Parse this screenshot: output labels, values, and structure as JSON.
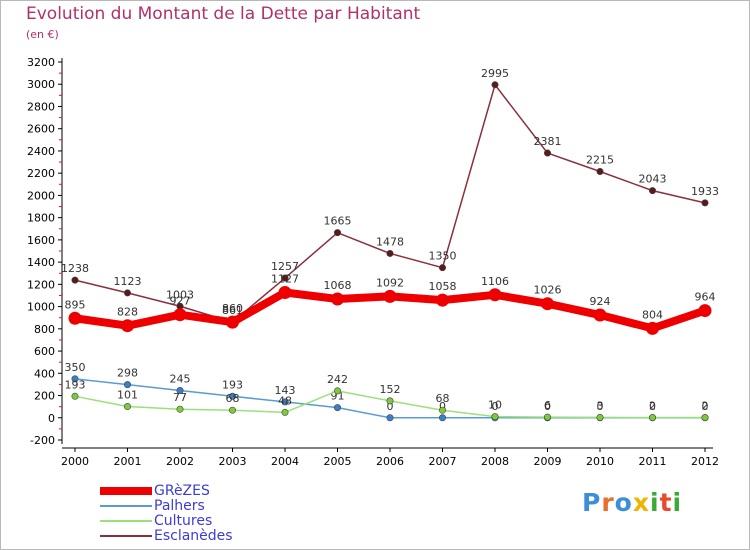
{
  "title": "Evolution du Montant de la Dette par Habitant",
  "subtitle": "(en €)",
  "logo": {
    "text": "Proxiti",
    "colors": [
      "#3a8fd6",
      "#e8702a",
      "#3a8fd6",
      "#f0b400",
      "#3aaa35",
      "#e84a2a",
      "#3aaa35"
    ]
  },
  "chart_data": {
    "type": "line",
    "x": [
      "2000",
      "2001",
      "2002",
      "2003",
      "2004",
      "2005",
      "2006",
      "2007",
      "2008",
      "2009",
      "2010",
      "2011",
      "2012"
    ],
    "ylim": [
      -200,
      3200
    ],
    "yticks": [
      "-200",
      "0",
      "200",
      "400",
      "600",
      "800",
      "1000",
      "1200",
      "1400",
      "1600",
      "1800",
      "2000",
      "2200",
      "2400",
      "2600",
      "2800",
      "3000",
      "3200"
    ],
    "grid": false,
    "legend_position": "bottom-left",
    "series": [
      {
        "name": "Esclanèdes",
        "color": "#8b2f3a",
        "marker": "#5a1a1a",
        "values": [
          1238,
          1123,
          1003,
          861,
          1257,
          1665,
          1478,
          1350,
          2995,
          2381,
          2215,
          2043,
          1933
        ],
        "labels": [
          "1238",
          "1123",
          "1003",
          "861",
          "1257",
          "1665",
          "1478",
          "1350",
          "2995",
          "2381",
          "2215",
          "2043",
          "1933"
        ]
      },
      {
        "name": "Palhers",
        "color": "#5b9bd5",
        "marker": "#3a80c8",
        "values": [
          350,
          298,
          245,
          193,
          143,
          91,
          0,
          0,
          0,
          0,
          0,
          0,
          0
        ],
        "labels": [
          "350",
          "298",
          "245",
          "193",
          "143",
          "91",
          "0",
          "0",
          "0",
          "0",
          "0",
          "0",
          "0"
        ]
      },
      {
        "name": "Cultures",
        "color": "#9be07a",
        "marker": "#7ccc3a",
        "values": [
          193,
          101,
          77,
          68,
          48,
          242,
          152,
          68,
          10,
          6,
          3,
          2,
          2
        ],
        "labels": [
          "193",
          "101",
          "77",
          "68",
          "48",
          "242",
          "152",
          "68",
          "10",
          "6",
          "3",
          "2",
          "2"
        ]
      },
      {
        "name": "GRèZES",
        "color": "#ee0000",
        "marker": "#ee0000",
        "values": [
          895,
          828,
          927,
          860,
          1127,
          1068,
          1092,
          1058,
          1106,
          1026,
          924,
          804,
          964
        ],
        "labels": [
          "895",
          "828",
          "927",
          "860",
          "1127",
          "1068",
          "1092",
          "1058",
          "1106",
          "1026",
          "924",
          "804",
          "964"
        ]
      }
    ],
    "legend": [
      "GRèZES",
      "Palhers",
      "Cultures",
      "Esclanèdes"
    ],
    "legend_colors": [
      "#ee0000",
      "#5b9bd5",
      "#9be07a",
      "#8b2f3a"
    ]
  }
}
